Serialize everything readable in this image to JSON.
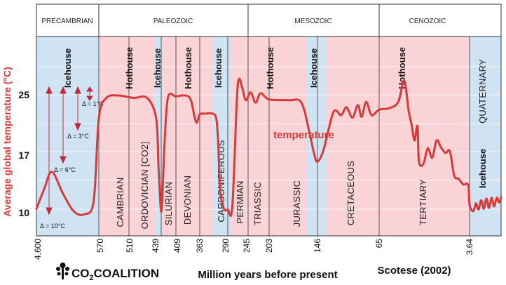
{
  "chart_data": {
    "type": "line",
    "ylabel": "Average global temperature (°C)",
    "xlabel": "Million years before present",
    "source": "Scotese (2002)",
    "logo": "CO2COALITION",
    "series_label": "temperature",
    "colors": {
      "line": "#d83a3a",
      "icehouse": "#cfe3f2",
      "hothouse": "#f9d3d6",
      "label": "#d83a3a"
    },
    "eras": [
      "PRECAMBRIAN",
      "PALEOZOIC",
      "MESOZOIC",
      "CENOZOIC"
    ],
    "climate_labels": [
      "Icehouse",
      "Hothouse",
      "Icehouse",
      "Hothouse",
      "Icehouse",
      "Hothouse",
      "Icehouse",
      "Hothouse",
      "Icehouse"
    ],
    "periods": [
      "CAMBRIAN",
      "ORDOVICIAN [CO2]",
      "SILURIAN",
      "DEVONIAN",
      "CARBONIFEROUS",
      "PERMIAN",
      "TRIASSIC",
      "JURASSIC",
      "CRETACEOUS",
      "TERTIARY",
      "QUATERNARY"
    ],
    "x_ticks": [
      "4,600",
      "570",
      "510",
      "439",
      "409",
      "363",
      "290",
      "245",
      "203",
      "146",
      "65",
      "3.64"
    ],
    "y_ticks": [
      "10",
      "17",
      "25"
    ],
    "deltas": [
      "Δ = 1°C",
      "Δ = 3°C",
      "Δ = 6°C",
      "Δ = 10°C"
    ],
    "points": [
      [
        4600,
        10.5
      ],
      [
        4100,
        13
      ],
      [
        3600,
        15.2
      ],
      [
        2900,
        12.5
      ],
      [
        2200,
        10.2
      ],
      [
        1500,
        9.8
      ],
      [
        900,
        11.5
      ],
      [
        570,
        22
      ],
      [
        555,
        24.6
      ],
      [
        530,
        24.9
      ],
      [
        500,
        24.6
      ],
      [
        470,
        24.6
      ],
      [
        450,
        22
      ],
      [
        445,
        16
      ],
      [
        440,
        10.5
      ],
      [
        437,
        11.5
      ],
      [
        432,
        19
      ],
      [
        425,
        24.7
      ],
      [
        409,
        24.8
      ],
      [
        390,
        24.9
      ],
      [
        380,
        24.3
      ],
      [
        370,
        21.5
      ],
      [
        363,
        22.5
      ],
      [
        350,
        22.6
      ],
      [
        330,
        22.6
      ],
      [
        320,
        22
      ],
      [
        315,
        19
      ],
      [
        310,
        13
      ],
      [
        300,
        10.5
      ],
      [
        290,
        10.4
      ],
      [
        280,
        10.7
      ],
      [
        270,
        24.3
      ],
      [
        265,
        27
      ],
      [
        258,
        25.9
      ],
      [
        250,
        24.3
      ],
      [
        240,
        25.3
      ],
      [
        230,
        24
      ],
      [
        220,
        25.2
      ],
      [
        203,
        24.4
      ],
      [
        180,
        24.3
      ],
      [
        165,
        24
      ],
      [
        155,
        20
      ],
      [
        150,
        17.5
      ],
      [
        146,
        16.5
      ],
      [
        138,
        18
      ],
      [
        125,
        22.8
      ],
      [
        115,
        22.4
      ],
      [
        108,
        23.4
      ],
      [
        100,
        22.1
      ],
      [
        93,
        23.7
      ],
      [
        88,
        22.2
      ],
      [
        82,
        24.1
      ],
      [
        75,
        22.4
      ],
      [
        65,
        23.1
      ],
      [
        58,
        23.3
      ],
      [
        52,
        24.1
      ],
      [
        48,
        26.8
      ],
      [
        45,
        23
      ],
      [
        43,
        21.2
      ],
      [
        41,
        19.2
      ],
      [
        39,
        21
      ],
      [
        38,
        16.5
      ],
      [
        35,
        16.2
      ],
      [
        32,
        18.2
      ],
      [
        29,
        17
      ],
      [
        26,
        19.2
      ],
      [
        23,
        18.3
      ],
      [
        20,
        17.6
      ],
      [
        17,
        17.8
      ],
      [
        14,
        14.7
      ],
      [
        11,
        14.3
      ],
      [
        8,
        13.6
      ],
      [
        4.5,
        13.5
      ],
      [
        3.64,
        11
      ],
      [
        3.2,
        10.2
      ],
      [
        2.9,
        11.2
      ],
      [
        2.6,
        10.4
      ],
      [
        2.3,
        11.6
      ],
      [
        2.0,
        10.5
      ],
      [
        1.7,
        11.8
      ],
      [
        1.4,
        10.6
      ],
      [
        1.1,
        11.9
      ],
      [
        0.8,
        10.8
      ],
      [
        0.5,
        11.9
      ],
      [
        0.2,
        11.3
      ],
      [
        0,
        12
      ]
    ]
  }
}
